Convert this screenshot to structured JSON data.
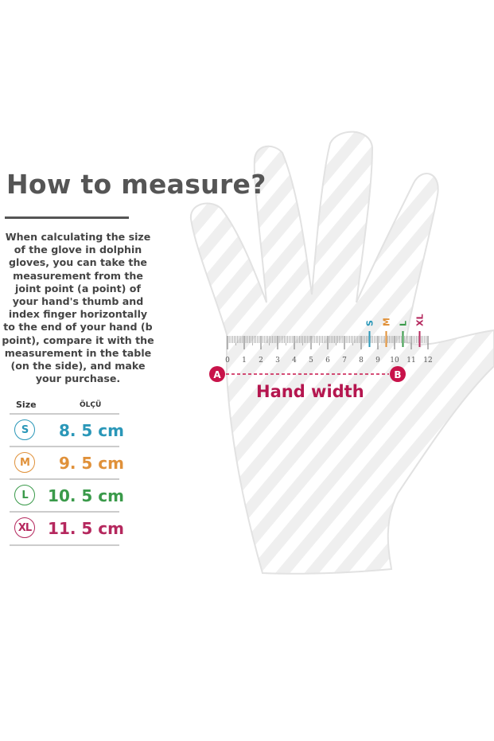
{
  "heading": "How to measure?",
  "description": "When calculating the size of the glove in dolphin gloves, you can take the measurement from the joint point (a point) of your hand's thumb and index finger horizontally to the end of your hand (b point), compare it with the measurement in the table (on the side), and make your purchase.",
  "table": {
    "header_size": "Size",
    "header_measure": "ÖLÇÜ",
    "rows": [
      {
        "size": "S",
        "value": "8. 5 cm",
        "color": "#2a97b8",
        "cm": 8.5
      },
      {
        "size": "M",
        "value": "9. 5 cm",
        "color": "#e0913a",
        "cm": 9.5
      },
      {
        "size": "L",
        "value": "10. 5 cm",
        "color": "#3a9a4a",
        "cm": 10.5
      },
      {
        "size": "XL",
        "value": "11. 5 cm",
        "color": "#b5285e",
        "cm": 11.5
      }
    ]
  },
  "ruler": {
    "labels": [
      "0",
      "1",
      "2",
      "3",
      "4",
      "5",
      "6",
      "7",
      "8",
      "9",
      "10",
      "11",
      "12"
    ]
  },
  "point_a": "A",
  "point_b": "B",
  "hand_width_label": "Hand width",
  "accent_color": "#c8134a"
}
